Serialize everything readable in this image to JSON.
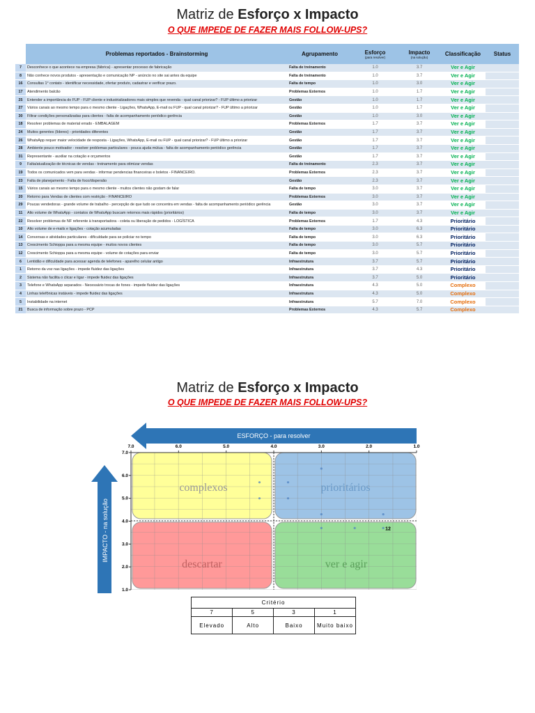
{
  "header": {
    "title_prefix": "Matriz de ",
    "title_bold": "Esforço x Impacto",
    "subtitle": "O QUE IMPEDE DE FAZER MAIS FOLLOW-UPS?"
  },
  "table": {
    "header": {
      "problem": "Problemas reportados -  Brainstorming",
      "group": "Agrupamento",
      "effort": "Esforço",
      "effort_note": "(para resolver)",
      "impact": "Impacto",
      "impact_note": "(na solução)",
      "class": "Classificação",
      "status": "Status"
    },
    "rows": [
      {
        "id": "7",
        "problem": "Desconhece o que acontece na empresa (fábrica) - apresentar processo de fabricação",
        "group": "Falta de treinamento",
        "effort": "1.0",
        "impact": "3.7",
        "class": "Ver e Agir"
      },
      {
        "id": "8",
        "problem": "Não conhece novos produtos - apresentação e comunicação NP - anúncio no site sai antes da equipe",
        "group": "Falta de treinamento",
        "effort": "1.0",
        "impact": "3.7",
        "class": "Ver e Agir"
      },
      {
        "id": "16",
        "problem": "Consultas 1° contato - identificar necessidade, ofertar produto, cadastrar e verificar prazo.",
        "group": "Falta de tempo",
        "effort": "1.0",
        "impact": "3.0",
        "class": "Ver e Agir"
      },
      {
        "id": "17",
        "problem": "Atendimento balcão",
        "group": "Problemas Externos",
        "effort": "1.0",
        "impact": "1.7",
        "class": "Ver e Agir"
      },
      {
        "id": "25",
        "problem": "Entender a importância do FUP - FUP cliente e industrializadores mais simples que revenda - qual canal priorizar? - FUP último a priorizar",
        "group": "Gestão",
        "effort": "1.0",
        "impact": "1.7",
        "class": "Ver e Agir"
      },
      {
        "id": "27",
        "problem": "Vários canais ao mesmo tempo para o mesmo cliente - Ligações, WhatsApp, E-mail ou FUP - qual canal priorizar? - FUP último a priorizar",
        "group": "Gestão",
        "effort": "1.0",
        "impact": "1.7",
        "class": "Ver e Agir"
      },
      {
        "id": "30",
        "problem": "Filtrar condições personalizadas para clientes - falta de acompanhamento periódico gerência",
        "group": "Gestão",
        "effort": "1.0",
        "impact": "3.0",
        "class": "Ver e Agir"
      },
      {
        "id": "18",
        "problem": "Resolver problemas de material errado - EMBALAGEM",
        "group": "Problemas Externos",
        "effort": "1.7",
        "impact": "3.7",
        "class": "Ver e Agir"
      },
      {
        "id": "24",
        "problem": "Muitos gerentes (líderes) - prioridades diferentes",
        "group": "Gestão",
        "effort": "1.7",
        "impact": "3.7",
        "class": "Ver e Agir"
      },
      {
        "id": "26",
        "problem": "WhatsApp requer maior velocidade de resposta - Ligações, WhatsApp, E-mail ou FUP - qual canal priorizar? - FUP último a priorizar",
        "group": "Gestão",
        "effort": "1.7",
        "impact": "3.7",
        "class": "Ver e Agir"
      },
      {
        "id": "28",
        "problem": "Ambiente pouco motivador - resolver problemas particulares - pouca ajuda mútua - falta de acompanhamento periódico gerência",
        "group": "Gestão",
        "effort": "1.7",
        "impact": "3.7",
        "class": "Ver e Agir"
      },
      {
        "id": "31",
        "problem": "Representante - auxiliar na cotação e orçamentos",
        "group": "Gestão",
        "effort": "1.7",
        "impact": "3.7",
        "class": "Ver e Agir"
      },
      {
        "id": "9",
        "problem": "Falta/atualização de técnicas de vendas - treinamento para otimizar vendas",
        "group": "Falta de treinamento",
        "effort": "2.3",
        "impact": "3.7",
        "class": "Ver e Agir"
      },
      {
        "id": "19",
        "problem": "Todos os comunicados vem para vendas - informar pendencias financeiras e boletos - FINANCEIRO.",
        "group": "Problemas Externos",
        "effort": "2.3",
        "impact": "3.7",
        "class": "Ver e Agir"
      },
      {
        "id": "23",
        "problem": "Falta de planejamento - Falta de foco/dispersão",
        "group": "Gestão",
        "effort": "2.3",
        "impact": "3.7",
        "class": "Ver e Agir"
      },
      {
        "id": "15",
        "problem": "Vários canais ao mesmo tempo para o mesmo cliente - muitos clientes não gostam de falar",
        "group": "Falta de tempo",
        "effort": "3.0",
        "impact": "3.7",
        "class": "Ver e Agir"
      },
      {
        "id": "20",
        "problem": "Retorno para Vendas de clientes com restrição - FINANCEIRO",
        "group": "Problemas Externos",
        "effort": "3.0",
        "impact": "3.7",
        "class": "Ver e Agir"
      },
      {
        "id": "29",
        "problem": "Poucas vendedoras - grande volume de trabalho - percepção de que tudo se concentra em vendas - falta de acompanhamento periódico gerência",
        "group": "Gestão",
        "effort": "3.0",
        "impact": "3.7",
        "class": "Ver e Agir"
      },
      {
        "id": "11",
        "problem": "Alto volume de WhatsApp - contatos de WhatsApp buscam retornos mais rápidos (prioritários)",
        "group": "Falta de tempo",
        "effort": "3.0",
        "impact": "3.7",
        "class": "Ver e Agir"
      },
      {
        "id": "22",
        "problem": "Resolver problemas de NF referente à transportadora - coleta ou liberação de pedidos - LOGÍSTICA",
        "group": "Problemas Externos",
        "effort": "1.7",
        "impact": "4.3",
        "class": "Prioritário"
      },
      {
        "id": "10",
        "problem": "Alto volume de e-mails e ligações - cotação acumuladas",
        "group": "Falta de tempo",
        "effort": "3.0",
        "impact": "6.3",
        "class": "Prioritário"
      },
      {
        "id": "14",
        "problem": "Conversas e atividades particulares - dificuldade para se policiar no tempo",
        "group": "Falta de tempo",
        "effort": "3.0",
        "impact": "6.3",
        "class": "Prioritário"
      },
      {
        "id": "13",
        "problem": "Crescimento Schioppa para a mesma equipe - muitos novos clientes",
        "group": "Falta de tempo",
        "effort": "3.0",
        "impact": "5.7",
        "class": "Prioritário"
      },
      {
        "id": "12",
        "problem": "Crescimento Schioppa para a mesma equipe - volume de cotações para enviar",
        "group": "Falta de tempo",
        "effort": "3.0",
        "impact": "5.7",
        "class": "Prioritário"
      },
      {
        "id": "6",
        "problem": "Lentidão e dificuldade para acessar agenda de telefones - aparelho celular antigo",
        "group": "Infraestrutura",
        "effort": "3.7",
        "impact": "5.7",
        "class": "Prioritário"
      },
      {
        "id": "1",
        "problem": "Retorno da voz nas ligações - impede fluidez das ligações",
        "group": "Infraestrutura",
        "effort": "3.7",
        "impact": "4.3",
        "class": "Prioritário"
      },
      {
        "id": "2",
        "problem": "Sistema não facilita o clicar e ligar - impede fluidez das ligações",
        "group": "Infraestrutura",
        "effort": "3.7",
        "impact": "5.0",
        "class": "Prioritário"
      },
      {
        "id": "3",
        "problem": "Telefone e WhatsApp separados - Necessário trocas de fones - impede fluidez das ligações",
        "group": "Infraestrutura",
        "effort": "4.3",
        "impact": "5.0",
        "class": "Complexo"
      },
      {
        "id": "4",
        "problem": "Linhas telefônicas instáveis - impede fluidez das ligações",
        "group": "Infraestrutura",
        "effort": "4.3",
        "impact": "5.0",
        "class": "Complexo"
      },
      {
        "id": "5",
        "problem": "Instabilidade na internet",
        "group": "Infraestrutura",
        "effort": "5.7",
        "impact": "7.0",
        "class": "Complexo"
      },
      {
        "id": "21",
        "problem": "Busca de informação sobre prazo - PCP",
        "group": "Problemas Externos",
        "effort": "4.3",
        "impact": "5.7",
        "class": "Complexo"
      }
    ]
  },
  "matrix": {
    "title_prefix": "Matriz de ",
    "title_bold": "Esforço x Impacto",
    "subtitle": "O QUE IMPEDE DE FAZER MAIS FOLLOW-UPS?",
    "x_axis_label": "ESFORÇO - para resolver",
    "y_axis_label": "IMPACTO - na solução",
    "xlim": [
      7,
      1
    ],
    "ylim": [
      1,
      7
    ],
    "xticks": [
      {
        "value": 7,
        "label": "7.0"
      },
      {
        "value": 6,
        "label": "6.0"
      },
      {
        "value": 5,
        "label": "5.0"
      },
      {
        "value": 4,
        "label": "4.0"
      },
      {
        "value": 3,
        "label": "3.0"
      },
      {
        "value": 2,
        "label": "2.0"
      },
      {
        "value": 1,
        "label": "1.0"
      }
    ],
    "yticks": [
      {
        "value": 7,
        "label": "7.0"
      },
      {
        "value": 6,
        "label": "6.0"
      },
      {
        "value": 5,
        "label": "5.0"
      },
      {
        "value": 4,
        "label": "4.0"
      },
      {
        "value": 3,
        "label": "3.0"
      },
      {
        "value": 2,
        "label": "2.0"
      },
      {
        "value": 1,
        "label": "1.0"
      }
    ],
    "quadrants": {
      "complex": "complexos",
      "priority": "prioritários",
      "discard": "descartar",
      "act": "ver e agir"
    },
    "points": [
      {
        "effort": 4.3,
        "impact": 5.7
      },
      {
        "effort": 3.7,
        "impact": 5.7
      },
      {
        "effort": 3.0,
        "impact": 6.3
      },
      {
        "effort": 3.7,
        "impact": 5.0
      },
      {
        "effort": 4.3,
        "impact": 5.0
      },
      {
        "effort": 3.0,
        "impact": 4.3
      },
      {
        "effort": 1.7,
        "impact": 4.3
      },
      {
        "effort": 3.0,
        "impact": 3.7
      },
      {
        "effort": 2.3,
        "impact": 3.7
      },
      {
        "effort": 1.7,
        "impact": 3.7,
        "label": "12"
      }
    ]
  },
  "criteria": {
    "title": "Critério",
    "scores": [
      "7",
      "5",
      "3",
      "1"
    ],
    "labels": [
      "Elevado",
      "Alto",
      "Baixo",
      "Muito baixo"
    ]
  }
}
